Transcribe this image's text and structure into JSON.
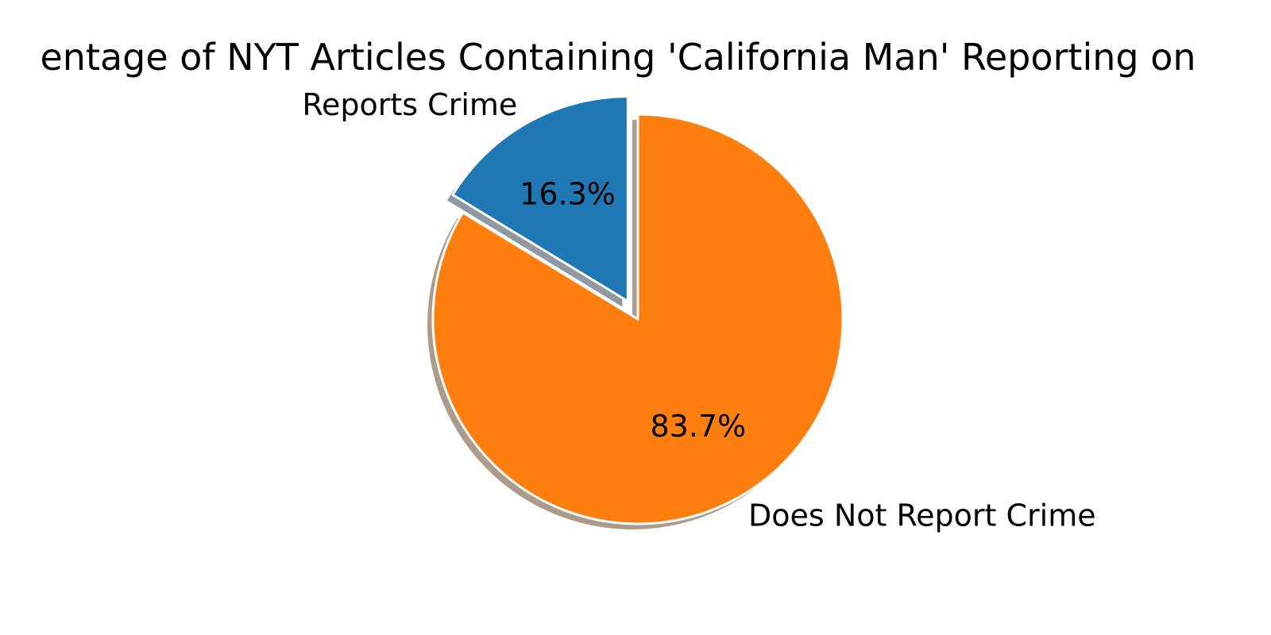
{
  "chart_data": {
    "type": "pie",
    "title": "Percentage of NYT Articles Containing 'California Man' Reporting on Crime",
    "title_visible": "entage of NYT Articles Containing 'California Man' Reporting on",
    "start_angle_deg": 90,
    "counterclockwise": true,
    "shadow": true,
    "slices": [
      {
        "label": "Reports Crime",
        "value": 16.3,
        "pct_label": "16.3%",
        "color": "#1f77b4",
        "exploded": true
      },
      {
        "label": "Does Not Report Crime",
        "value": 83.7,
        "pct_label": "83.7%",
        "color": "#ff7f0e",
        "exploded": false
      }
    ]
  }
}
